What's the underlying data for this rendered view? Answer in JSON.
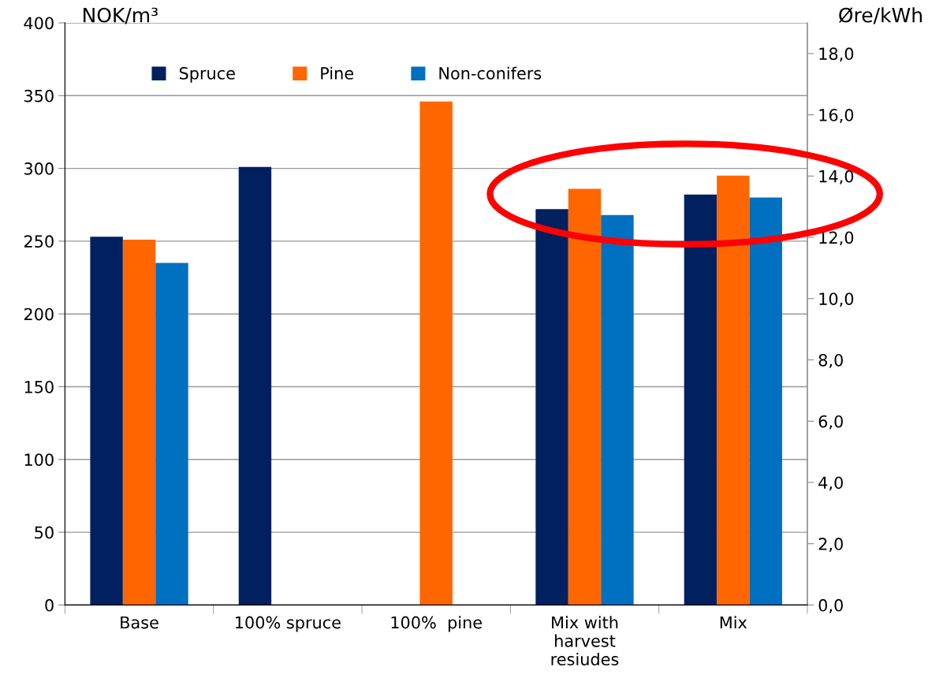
{
  "chart_data": {
    "type": "bar",
    "ylabel": "NOK/m³",
    "y2label": "Øre/kWh",
    "categories": [
      "Base",
      "100% spruce",
      "100%  pine",
      "Mix with\nharvest\nresiudes",
      "Mix"
    ],
    "series": [
      {
        "name": "Spruce",
        "color": "#002060",
        "values": [
          253,
          301,
          null,
          272,
          282
        ]
      },
      {
        "name": "Pine",
        "color": "#ff6600",
        "values": [
          251,
          null,
          346,
          286,
          295
        ]
      },
      {
        "name": "Non-conifers",
        "color": "#0070c0",
        "values": [
          235,
          null,
          null,
          268,
          280
        ]
      }
    ],
    "ylim": [
      0,
      400
    ],
    "yticks": [
      0,
      50,
      100,
      150,
      200,
      250,
      300,
      350,
      400
    ],
    "y2lim": [
      0,
      19.0
    ],
    "y2ticks": [
      {
        "value": 0,
        "label": "0,0"
      },
      {
        "value": 2,
        "label": "2,0"
      },
      {
        "value": 4,
        "label": "4,0"
      },
      {
        "value": 6,
        "label": "6,0"
      },
      {
        "value": 8,
        "label": "8,0"
      },
      {
        "value": 10,
        "label": "10,0"
      },
      {
        "value": 12,
        "label": "12,0"
      },
      {
        "value": 14,
        "label": "14,0"
      },
      {
        "value": 16,
        "label": "16,0"
      },
      {
        "value": 18,
        "label": "18,0"
      }
    ],
    "grid": "y",
    "legend": "top"
  }
}
